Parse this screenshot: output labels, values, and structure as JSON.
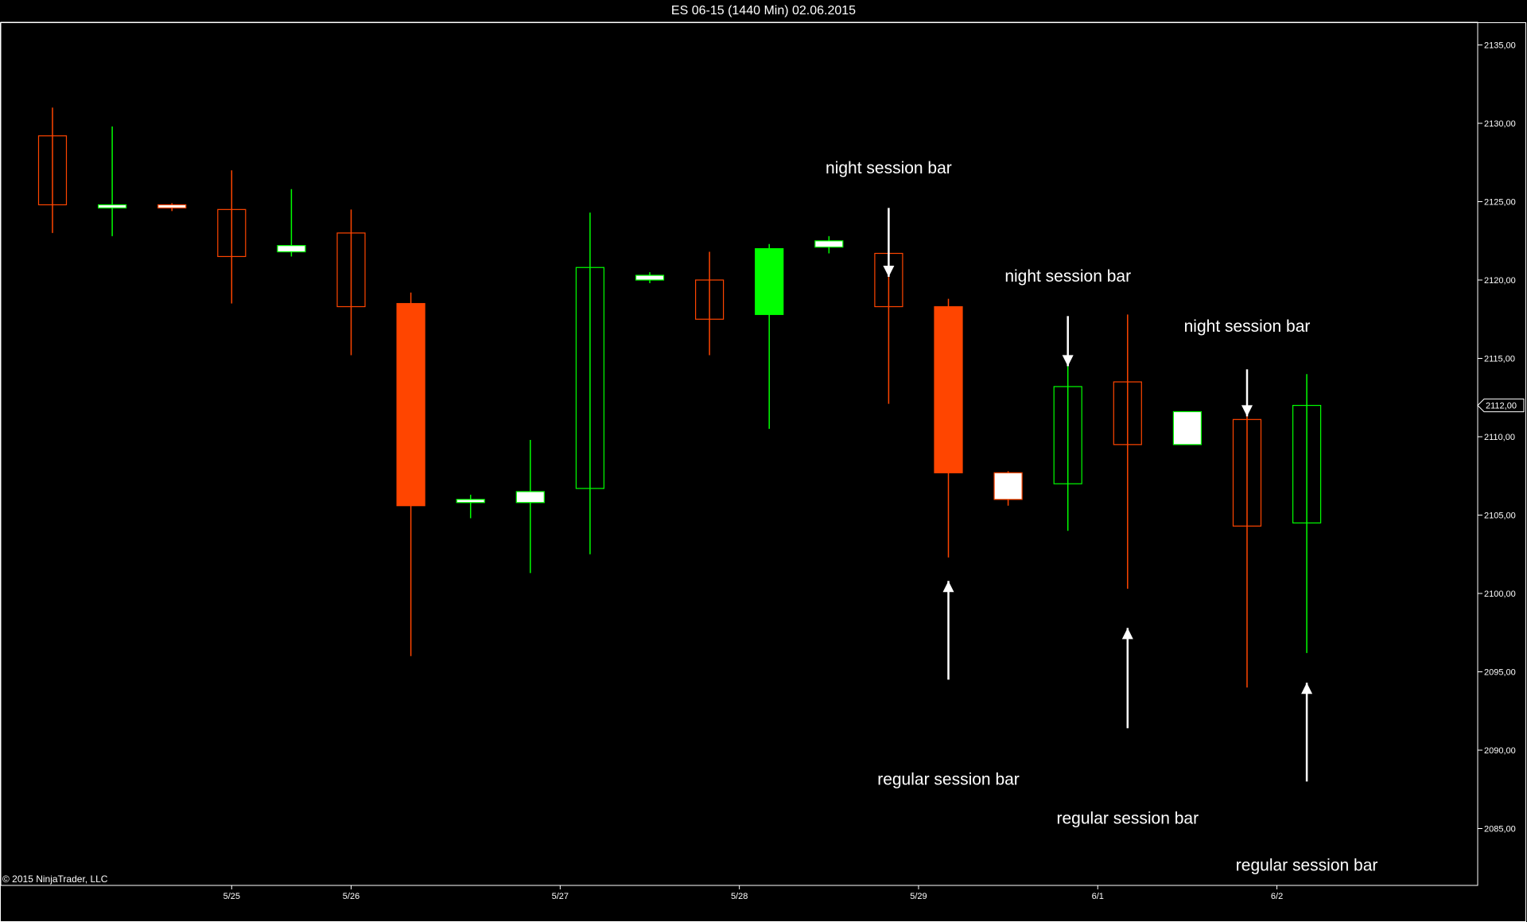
{
  "window": {
    "title": "ES 06-15 (1440 Min)  02.06.2015"
  },
  "footer": {
    "copyright": "© 2015 NinjaTrader, LLC"
  },
  "colors": {
    "background": "#000000",
    "up": "#00ff00",
    "down": "#ff4500",
    "doji": "#ffffff",
    "axis": "#ffffff"
  },
  "chart_data": {
    "type": "candlestick",
    "title": "ES 06-15 (1440 Min)  02.06.2015",
    "ylim": [
      2081.0,
      2136.0
    ],
    "y_ticks": [
      "2135,00",
      "2130,00",
      "2125,00",
      "2120,00",
      "2115,00",
      "2110,00",
      "2105,00",
      "2100,00",
      "2095,00",
      "2090,00",
      "2085,00"
    ],
    "y_tick_values": [
      2135,
      2130,
      2125,
      2120,
      2115,
      2110,
      2105,
      2100,
      2095,
      2090,
      2085
    ],
    "last_price": "2112,00",
    "last_price_value": 2112.0,
    "x_labels": [
      {
        "label": "5/25",
        "index": 3
      },
      {
        "label": "5/26",
        "index": 5
      },
      {
        "label": "5/27",
        "index": 8.5
      },
      {
        "label": "5/28",
        "index": 11.5
      },
      {
        "label": "5/29",
        "index": 14.5
      },
      {
        "label": "6/1",
        "index": 17.5
      },
      {
        "label": "6/2",
        "index": 20.5
      }
    ],
    "candles": [
      {
        "open": 2129.2,
        "high": 2131.0,
        "low": 2123.0,
        "close": 2124.8,
        "fill": "hollow"
      },
      {
        "open": 2124.6,
        "high": 2129.8,
        "low": 2122.8,
        "close": 2124.8,
        "fill": "white",
        "dir": "up"
      },
      {
        "open": 2124.8,
        "high": 2124.9,
        "low": 2124.4,
        "close": 2124.6,
        "fill": "white",
        "dir": "down"
      },
      {
        "open": 2124.5,
        "high": 2127.0,
        "low": 2118.5,
        "close": 2121.5,
        "fill": "hollow"
      },
      {
        "open": 2121.8,
        "high": 2125.8,
        "low": 2121.5,
        "close": 2122.2,
        "fill": "white",
        "dir": "up"
      },
      {
        "open": 2123.0,
        "high": 2124.5,
        "low": 2115.2,
        "close": 2118.3,
        "fill": "hollow"
      },
      {
        "open": 2118.5,
        "high": 2119.2,
        "low": 2096.0,
        "close": 2105.6,
        "fill": "solid"
      },
      {
        "open": 2105.8,
        "high": 2106.3,
        "low": 2104.8,
        "close": 2106.0,
        "fill": "white",
        "dir": "up"
      },
      {
        "open": 2105.8,
        "high": 2109.8,
        "low": 2101.3,
        "close": 2106.5,
        "fill": "white",
        "dir": "up"
      },
      {
        "open": 2106.7,
        "high": 2124.3,
        "low": 2102.5,
        "close": 2120.8,
        "fill": "hollow"
      },
      {
        "open": 2120.0,
        "high": 2120.5,
        "low": 2119.8,
        "close": 2120.3,
        "fill": "white",
        "dir": "up"
      },
      {
        "open": 2120.0,
        "high": 2121.8,
        "low": 2115.2,
        "close": 2117.5,
        "fill": "hollow"
      },
      {
        "open": 2117.8,
        "high": 2122.3,
        "low": 2110.5,
        "close": 2122.0,
        "fill": "solid"
      },
      {
        "open": 2122.1,
        "high": 2122.8,
        "low": 2121.7,
        "close": 2122.5,
        "fill": "white",
        "dir": "up"
      },
      {
        "open": 2121.7,
        "high": 2122.8,
        "low": 2112.1,
        "close": 2118.3,
        "fill": "hollow"
      },
      {
        "open": 2118.3,
        "high": 2118.8,
        "low": 2102.3,
        "close": 2107.7,
        "fill": "solid"
      },
      {
        "open": 2107.7,
        "high": 2107.8,
        "low": 2105.6,
        "close": 2106.0,
        "fill": "white",
        "dir": "down"
      },
      {
        "open": 2107.0,
        "high": 2115.8,
        "low": 2104.0,
        "close": 2113.2,
        "fill": "hollow"
      },
      {
        "open": 2113.5,
        "high": 2117.8,
        "low": 2100.3,
        "close": 2109.5,
        "fill": "hollow"
      },
      {
        "open": 2109.5,
        "high": 2111.6,
        "low": 2109.5,
        "close": 2111.6,
        "fill": "white",
        "dir": "up"
      },
      {
        "open": 2111.1,
        "high": 2112.9,
        "low": 2094.0,
        "close": 2104.3,
        "fill": "hollow"
      },
      {
        "open": 2104.5,
        "high": 2114.0,
        "low": 2096.2,
        "close": 2112.0,
        "fill": "hollow"
      }
    ],
    "annotations": [
      {
        "text": "night session bar",
        "index": 14,
        "text_value": 2126.8,
        "arrow_from": 2124.6,
        "arrow_to": 2120.2,
        "direction": "down"
      },
      {
        "text": "regular session bar",
        "index": 15,
        "text_value": 2087.8,
        "arrow_from": 2094.5,
        "arrow_to": 2100.8,
        "direction": "up"
      },
      {
        "text": "night session bar",
        "index": 17,
        "text_value": 2119.9,
        "arrow_from": 2117.7,
        "arrow_to": 2114.5,
        "direction": "down"
      },
      {
        "text": "regular session bar",
        "index": 18,
        "text_value": 2085.3,
        "arrow_from": 2091.4,
        "arrow_to": 2097.8,
        "direction": "up"
      },
      {
        "text": "night session bar",
        "index": 20,
        "text_value": 2116.7,
        "arrow_from": 2114.3,
        "arrow_to": 2111.3,
        "direction": "down"
      },
      {
        "text": "regular session bar",
        "index": 21,
        "text_value": 2082.3,
        "arrow_from": 2088.0,
        "arrow_to": 2094.3,
        "direction": "up"
      }
    ]
  }
}
